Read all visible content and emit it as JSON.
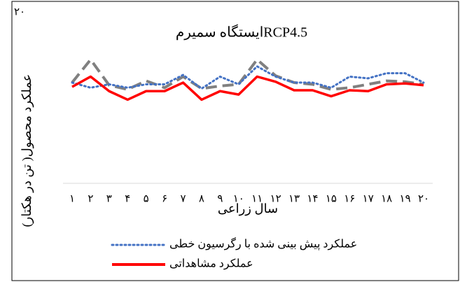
{
  "chart_data": {
    "type": "line",
    "title": "ایستگاه سمیرمRCP4.5",
    "x_label": "سال زراعی",
    "y_label": "عملکرد محصول( تن در هکتار)",
    "categories": [
      "۱",
      "۲",
      "۳",
      "۴",
      "۵",
      "۶",
      "۷",
      "۸",
      "۹",
      "۱۰",
      "۱۱",
      "۱۲",
      "۱۳",
      "۱۴",
      "۱۵",
      "۱۶",
      "۱۷",
      "۱۸",
      "۱۹",
      "۲۰"
    ],
    "ylim": [
      0,
      20
    ],
    "yticks": [
      {
        "value": 20,
        "label": "۲۰"
      }
    ],
    "series": [
      {
        "color": "#808080",
        "style": "dashed",
        "values": [
          11.8,
          14.5,
          11.5,
          11.0,
          12.0,
          11.2,
          12.5,
          11.1,
          11.4,
          11.6,
          14.5,
          12.6,
          11.8,
          11.6,
          11.0,
          11.2,
          11.6,
          12.0,
          11.9,
          11.6
        ]
      },
      {
        "name": "عملکرد پیش بینی شده با رگرسیون خطی",
        "color": "#4472c4",
        "style": "dotted",
        "values": [
          11.8,
          11.2,
          11.6,
          11.2,
          11.6,
          11.6,
          12.7,
          11.1,
          12.5,
          11.6,
          13.7,
          12.5,
          11.8,
          11.8,
          11.2,
          12.5,
          12.3,
          12.9,
          12.9,
          11.8
        ]
      },
      {
        "name": "عملکرد مشاهداتی",
        "color": "#ff0000",
        "style": "solid",
        "values": [
          11.3,
          12.5,
          10.8,
          9.8,
          10.8,
          10.8,
          11.8,
          9.8,
          10.8,
          10.4,
          12.5,
          11.9,
          10.9,
          10.9,
          10.2,
          10.9,
          10.8,
          11.6,
          11.7,
          11.5
        ]
      }
    ]
  }
}
